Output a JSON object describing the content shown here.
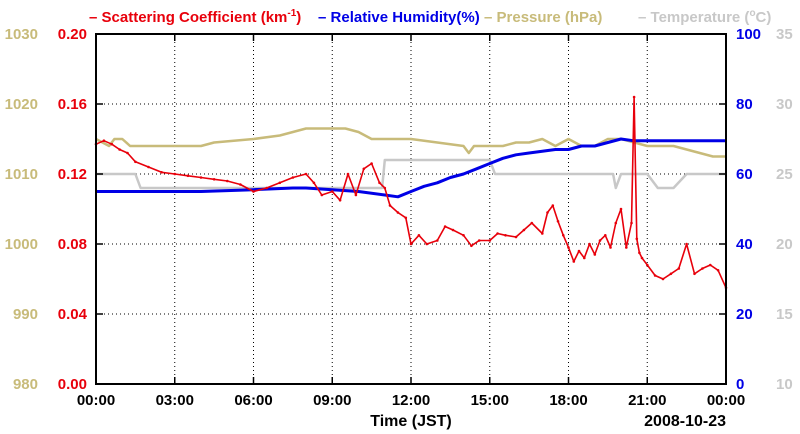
{
  "chart_data": {
    "type": "line",
    "date_label": "2008-10-23",
    "xlabel": "Time (JST)",
    "x_ticks": [
      "00:00",
      "03:00",
      "06:00",
      "09:00",
      "12:00",
      "15:00",
      "18:00",
      "21:00",
      "00:00"
    ],
    "xlim": [
      0,
      24
    ],
    "grid": true,
    "legend": [
      {
        "dash": "–",
        "text": "Scattering Coefficient (km",
        "sup": "-1",
        "close": ")",
        "color": "#e8000b"
      },
      {
        "dash": "–",
        "text": "Relative Humidity(%)",
        "sup": "",
        "close": "",
        "color": "#0000e6"
      },
      {
        "dash": "–",
        "text": "Pressure (hPa)",
        "sup": "",
        "close": "",
        "color": "#c8bb7a"
      },
      {
        "dash": "–",
        "text": "Temperature (",
        "sup": "o",
        "close": "C)",
        "color": "#c8c8c8"
      }
    ],
    "axes": {
      "left_outer": {
        "name": "Pressure (hPa)",
        "color": "#c8bb7a",
        "range": [
          980,
          1030
        ],
        "ticks": [
          "980",
          "990",
          "1000",
          "1010",
          "1020",
          "1030"
        ]
      },
      "left_inner": {
        "name": "Scattering Coefficient",
        "color": "#e8000b",
        "range": [
          0,
          0.2
        ],
        "ticks": [
          "0.00",
          "0.04",
          "0.08",
          "0.12",
          "0.16",
          "0.20"
        ]
      },
      "right_inner": {
        "name": "Relative Humidity(%)",
        "color": "#0000e6",
        "range": [
          0,
          100
        ],
        "ticks": [
          "0",
          "20",
          "40",
          "60",
          "80",
          "100"
        ]
      },
      "right_outer": {
        "name": "Temperature",
        "color": "#c8c8c8",
        "range": [
          10,
          35
        ],
        "ticks": [
          "10",
          "15",
          "20",
          "25",
          "30",
          "35"
        ]
      }
    },
    "series": [
      {
        "name": "Scattering Coefficient",
        "axis": "left_inner",
        "color": "#e8000b",
        "x": [
          0,
          0.3,
          0.6,
          0.9,
          1.2,
          1.5,
          2.0,
          2.5,
          3.0,
          3.5,
          4.0,
          4.5,
          5.0,
          5.5,
          6.0,
          6.5,
          7.0,
          7.5,
          8.0,
          8.3,
          8.6,
          9.0,
          9.3,
          9.6,
          9.9,
          10.2,
          10.5,
          10.8,
          11.0,
          11.2,
          11.5,
          11.8,
          12.0,
          12.3,
          12.6,
          13.0,
          13.3,
          13.6,
          14.0,
          14.3,
          14.6,
          15.0,
          15.3,
          15.6,
          16.0,
          16.3,
          16.6,
          17.0,
          17.2,
          17.4,
          17.6,
          17.8,
          18.0,
          18.2,
          18.4,
          18.6,
          18.8,
          19.0,
          19.2,
          19.4,
          19.6,
          19.8,
          20.0,
          20.2,
          20.4,
          20.5,
          20.6,
          20.7,
          20.8,
          21.0,
          21.3,
          21.6,
          21.9,
          22.2,
          22.5,
          22.8,
          23.1,
          23.4,
          23.7,
          24.0
        ],
        "values": [
          0.137,
          0.139,
          0.137,
          0.134,
          0.132,
          0.127,
          0.124,
          0.121,
          0.12,
          0.119,
          0.118,
          0.117,
          0.116,
          0.114,
          0.11,
          0.112,
          0.115,
          0.118,
          0.12,
          0.115,
          0.108,
          0.11,
          0.105,
          0.12,
          0.108,
          0.123,
          0.126,
          0.115,
          0.112,
          0.102,
          0.098,
          0.095,
          0.08,
          0.085,
          0.08,
          0.082,
          0.09,
          0.088,
          0.085,
          0.079,
          0.082,
          0.082,
          0.086,
          0.085,
          0.084,
          0.088,
          0.092,
          0.086,
          0.098,
          0.102,
          0.093,
          0.085,
          0.078,
          0.07,
          0.076,
          0.072,
          0.08,
          0.074,
          0.082,
          0.085,
          0.078,
          0.092,
          0.1,
          0.078,
          0.092,
          0.164,
          0.083,
          0.075,
          0.072,
          0.068,
          0.062,
          0.06,
          0.063,
          0.066,
          0.08,
          0.063,
          0.066,
          0.068,
          0.065,
          0.055
        ]
      },
      {
        "name": "Relative Humidity(%)",
        "axis": "right_inner",
        "color": "#0000e6",
        "x": [
          0,
          2,
          4,
          6,
          7.5,
          8,
          9,
          10,
          11,
          11.5,
          12,
          12.5,
          13,
          13.5,
          14,
          14.5,
          15,
          15.5,
          16,
          16.5,
          17,
          17.5,
          18,
          18.5,
          19,
          19.5,
          20,
          20.5,
          21,
          21.5,
          22,
          22.5,
          23,
          24
        ],
        "values": [
          55,
          55,
          55,
          55.5,
          56,
          56,
          55.5,
          55,
          54,
          53.5,
          55,
          56.5,
          57.5,
          59,
          60,
          61.5,
          63,
          64.5,
          65.5,
          66,
          66.5,
          67,
          67,
          68,
          68,
          69,
          70,
          69.5,
          69.5,
          69.5,
          69.5,
          69.5,
          69.5,
          69.5
        ]
      },
      {
        "name": "Pressure (hPa)",
        "axis": "left_outer",
        "color": "#c8bb7a",
        "x": [
          0,
          0.5,
          0.7,
          1,
          1.3,
          4,
          4.5,
          6,
          7,
          7.5,
          8,
          9.5,
          10,
          10.5,
          11,
          12,
          13,
          14,
          14.2,
          14.4,
          15,
          15.5,
          16,
          16.5,
          17,
          17.5,
          18,
          18.5,
          19,
          19.5,
          20,
          21,
          21.5,
          22,
          23,
          23.5,
          24
        ],
        "values": [
          1015,
          1014,
          1015,
          1015,
          1014,
          1014,
          1014.5,
          1015,
          1015.5,
          1016,
          1016.5,
          1016.5,
          1016,
          1015,
          1015,
          1015,
          1014.5,
          1014,
          1013,
          1014,
          1014,
          1014,
          1014.5,
          1014.5,
          1015,
          1014,
          1015,
          1014,
          1014,
          1015,
          1015,
          1014,
          1014,
          1014,
          1013,
          1012.5,
          1012.5
        ]
      },
      {
        "name": "Temperature",
        "axis": "right_outer",
        "color": "#c8c8c8",
        "x": [
          0,
          1.5,
          1.7,
          5,
          6,
          6.1,
          9,
          10,
          10.9,
          11,
          11.5,
          12,
          13,
          14,
          15,
          15.2,
          16,
          19,
          19.7,
          19.8,
          20,
          20.5,
          21,
          21.4,
          21.5,
          22,
          22.5,
          23,
          24
        ],
        "values": [
          25,
          25,
          24,
          24,
          24,
          24,
          24,
          24,
          24,
          26,
          26,
          26,
          26,
          26,
          26,
          25,
          25,
          25,
          25,
          24,
          25,
          25,
          25,
          24,
          24,
          24,
          25,
          25,
          25
        ]
      }
    ]
  }
}
